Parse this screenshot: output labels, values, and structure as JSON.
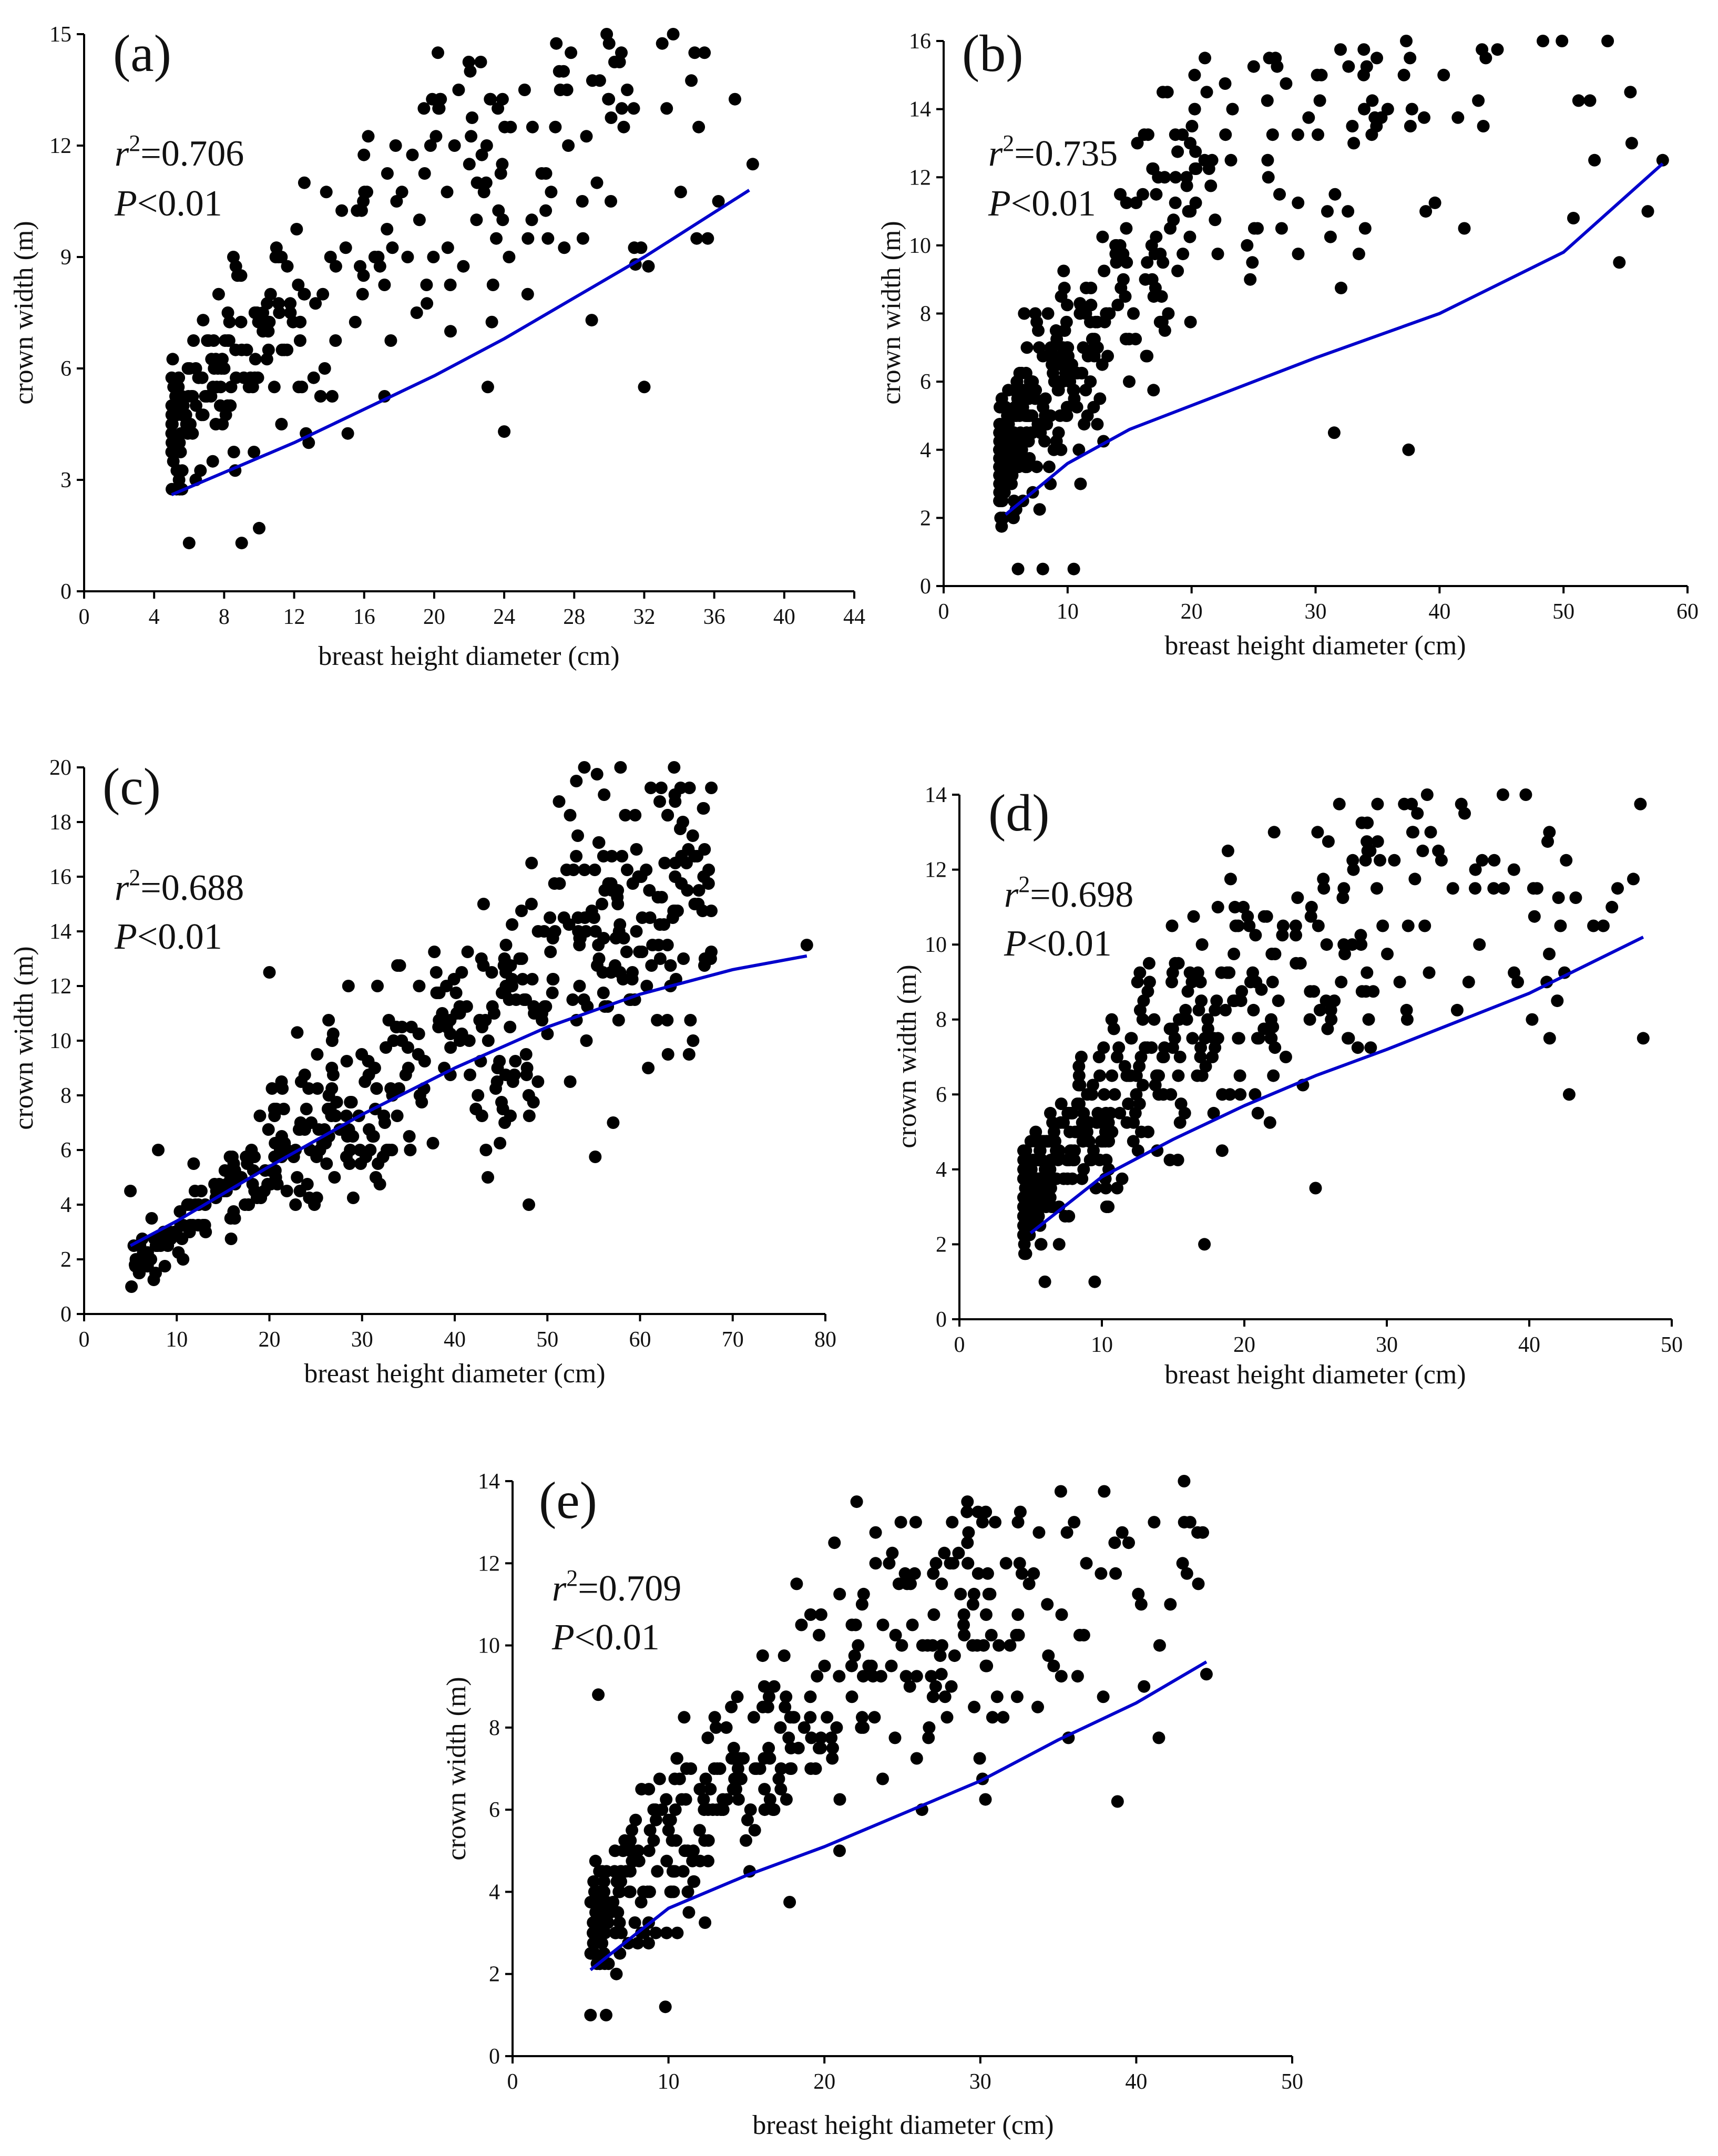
{
  "figure": {
    "point_color": "#000000",
    "fit_color": "#0000cc"
  },
  "chart_data": [
    {
      "type": "scatter",
      "panel": "(a)",
      "xlabel": "breast height diameter (cm)",
      "ylabel": "crown width (m)",
      "xlim": [
        0,
        44
      ],
      "ylim": [
        0,
        15
      ],
      "xticks": [
        0,
        4,
        8,
        12,
        16,
        20,
        24,
        28,
        32,
        36,
        40,
        44
      ],
      "yticks": [
        0,
        3,
        6,
        9,
        12,
        15
      ],
      "r2_label": "=0.706",
      "p_label": "<0.01",
      "fit": {
        "x": [
          5,
          8,
          12,
          16,
          20,
          24,
          28,
          32,
          35,
          38
        ],
        "y": [
          2.6,
          3.2,
          4.0,
          4.9,
          5.8,
          6.8,
          7.9,
          9.0,
          9.9,
          10.8
        ]
      },
      "gen": {
        "n": 330,
        "xmin": 5,
        "xmax": 38,
        "xshape": 1.9,
        "a": 1.34,
        "b": 0.7
      },
      "extra_points": [
        [
          6.8,
          7.3
        ],
        [
          8,
          6
        ],
        [
          26.5,
          9.5
        ],
        [
          28.5,
          9.5
        ],
        [
          29,
          7.3
        ],
        [
          32,
          5.5
        ],
        [
          38.2,
          11.5
        ],
        [
          35,
          9.5
        ],
        [
          31.5,
          8.8
        ],
        [
          24,
          4.3
        ],
        [
          10,
          1.7
        ],
        [
          9,
          1.3
        ],
        [
          6,
          1.3
        ]
      ]
    },
    {
      "type": "scatter",
      "panel": "(b)",
      "xlabel": "breast height diameter (cm)",
      "ylabel": "crown width (m)",
      "xlim": [
        0,
        60
      ],
      "ylim": [
        0,
        16
      ],
      "xticks": [
        0,
        10,
        20,
        30,
        40,
        50,
        60
      ],
      "yticks": [
        0,
        2,
        4,
        6,
        8,
        10,
        12,
        14,
        16
      ],
      "r2_label": "=0.735",
      "p_label": "<0.01",
      "fit": {
        "x": [
          5,
          10,
          15,
          20,
          30,
          40,
          50,
          58
        ],
        "y": [
          2.1,
          3.6,
          4.6,
          5.3,
          6.7,
          8.0,
          9.8,
          12.4
        ]
      },
      "gen": {
        "n": 560,
        "xmin": 4.5,
        "xmax": 58,
        "xshape": 2.6,
        "a": 1.06,
        "b": 0.79
      },
      "extra_points": [
        [
          6.5,
          8
        ],
        [
          11,
          8.3
        ],
        [
          55.5,
          13
        ],
        [
          52.5,
          12.5
        ],
        [
          54.5,
          9.5
        ],
        [
          56.8,
          11
        ],
        [
          58,
          12.5
        ],
        [
          37.5,
          4
        ],
        [
          31.5,
          4.5
        ],
        [
          6,
          0.5
        ],
        [
          10.5,
          0.5
        ],
        [
          8,
          0.5
        ],
        [
          42,
          10.5
        ],
        [
          50.8,
          10.8
        ],
        [
          34,
          10.5
        ]
      ]
    },
    {
      "type": "scatter",
      "panel": "(c)",
      "xlabel": "breast height diameter (cm)",
      "ylabel": "crown width (m)",
      "xlim": [
        0,
        80
      ],
      "ylim": [
        0,
        20
      ],
      "xticks": [
        0,
        10,
        20,
        30,
        40,
        50,
        60,
        70,
        80
      ],
      "yticks": [
        0,
        2,
        4,
        6,
        8,
        10,
        12,
        14,
        16,
        18,
        20
      ],
      "r2_label": "=0.688",
      "p_label": "<0.01",
      "fit": {
        "x": [
          5,
          10,
          20,
          30,
          40,
          50,
          60,
          70,
          78
        ],
        "y": [
          2.5,
          3.4,
          5.4,
          7.3,
          9.0,
          10.5,
          11.7,
          12.6,
          13.1
        ]
      },
      "gen": {
        "n": 480,
        "xmin": 5,
        "xmax": 68,
        "xshape": 1.0,
        "a": 0.46,
        "b": 0.84
      },
      "extra_points": [
        [
          20,
          12.5
        ],
        [
          49,
          14
        ],
        [
          55.5,
          13.5
        ],
        [
          62,
          13.5
        ],
        [
          78,
          13.5
        ],
        [
          67,
          13
        ],
        [
          48,
          4
        ],
        [
          5,
          4.5
        ],
        [
          5.5,
          1.8
        ],
        [
          6,
          1.8
        ],
        [
          8,
          6
        ],
        [
          23,
          10.3
        ],
        [
          44,
          12.5
        ],
        [
          38,
          12.5
        ]
      ]
    },
    {
      "type": "scatter",
      "panel": "(d)",
      "xlabel": "breast height diameter (cm)",
      "ylabel": "crown width (m)",
      "xlim": [
        0,
        50
      ],
      "ylim": [
        0,
        14
      ],
      "xticks": [
        0,
        10,
        20,
        30,
        40,
        50
      ],
      "yticks": [
        0,
        2,
        4,
        6,
        8,
        10,
        12,
        14
      ],
      "r2_label": "=0.698",
      "p_label": "<0.01",
      "fit": {
        "x": [
          5,
          10,
          15,
          20,
          25,
          30,
          40,
          48
        ],
        "y": [
          2.3,
          3.8,
          4.8,
          5.7,
          6.5,
          7.2,
          8.7,
          10.2
        ]
      },
      "gen": {
        "n": 560,
        "xmin": 4.5,
        "xmax": 48,
        "xshape": 2.5,
        "a": 1.06,
        "b": 0.72
      },
      "extra_points": [
        [
          36.2,
          11.5
        ],
        [
          37.5,
          11.5
        ],
        [
          38.2,
          11.5
        ],
        [
          45.8,
          11
        ],
        [
          45.2,
          10.5
        ],
        [
          31.5,
          10.5
        ],
        [
          36.5,
          10
        ],
        [
          40.2,
          8
        ],
        [
          42.8,
          6
        ],
        [
          48,
          7.5
        ],
        [
          17.2,
          2
        ],
        [
          25,
          3.5
        ],
        [
          9.5,
          1
        ],
        [
          6,
          1
        ],
        [
          21.2,
          8.8
        ],
        [
          22,
          7.8
        ]
      ]
    },
    {
      "type": "scatter",
      "panel": "(e)",
      "xlabel": "breast height diameter (cm)",
      "ylabel": "crown width (m)",
      "xlim": [
        0,
        50
      ],
      "ylim": [
        0,
        14
      ],
      "xticks": [
        0,
        10,
        20,
        30,
        40,
        50
      ],
      "yticks": [
        0,
        2,
        4,
        6,
        8,
        10,
        12,
        14
      ],
      "r2_label": "=0.709",
      "p_label": "<0.01",
      "fit": {
        "x": [
          5,
          10,
          15,
          20,
          25,
          30,
          35,
          40,
          44.5
        ],
        "y": [
          2.1,
          3.6,
          4.4,
          5.1,
          5.9,
          6.7,
          7.7,
          8.6,
          9.6
        ]
      },
      "gen": {
        "n": 440,
        "xmin": 5,
        "xmax": 44.5,
        "xshape": 1.6,
        "a": 0.94,
        "b": 0.74
      },
      "extra_points": [
        [
          5.5,
          8.8
        ],
        [
          36.8,
          12
        ],
        [
          29.8,
          10
        ],
        [
          41.5,
          10
        ],
        [
          44.5,
          9.3
        ],
        [
          40.5,
          9
        ],
        [
          38.8,
          6.2
        ],
        [
          5,
          1
        ],
        [
          6,
          1
        ],
        [
          9.8,
          1.2
        ],
        [
          27.5,
          9.3
        ]
      ]
    }
  ]
}
